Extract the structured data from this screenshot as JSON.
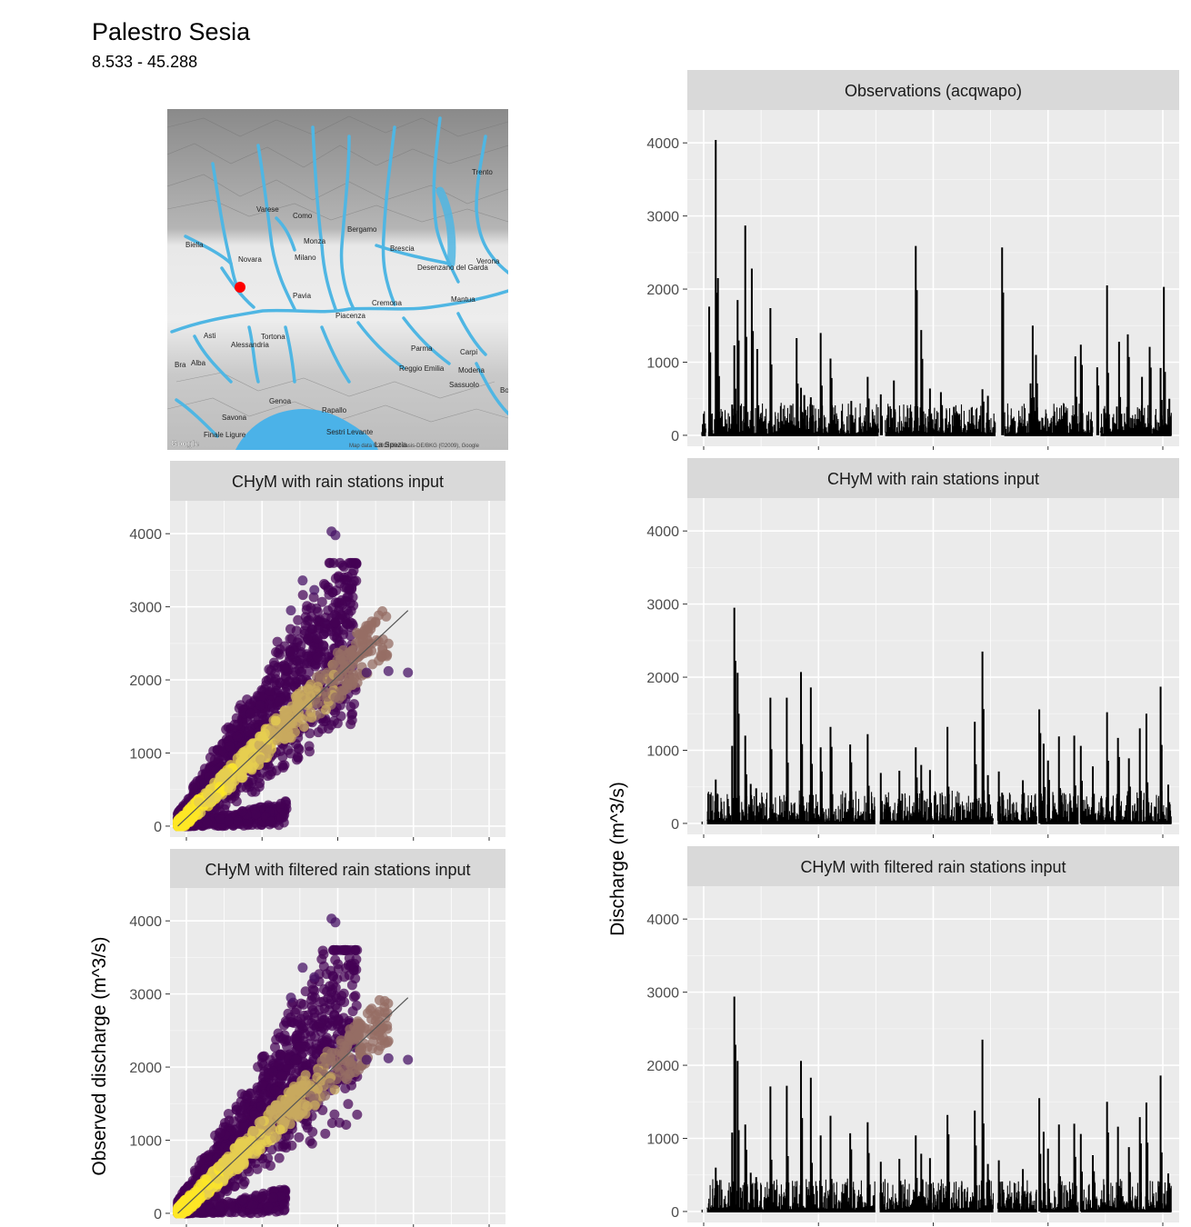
{
  "header": {
    "station_name": "Palestro Sesia",
    "coordinates": "8.533 - 45.288"
  },
  "map": {
    "marker_color": "#ff0000",
    "river_color": "#4fb6e3",
    "sea_color": "#4bb2e8",
    "labels": [
      "Varese",
      "Como",
      "Biella",
      "Monza",
      "Bergamo",
      "Brescia",
      "Novara",
      "Milano",
      "Desenzano del Garda",
      "Verona",
      "Pavia",
      "Cremona",
      "Mantua",
      "Piacenza",
      "Asti",
      "Alessandria",
      "Tortona",
      "Parma",
      "Carpi",
      "Reggio Emilia",
      "Modena",
      "Sassuolo",
      "Genoa",
      "Rapallo",
      "Savona",
      "Sestri Levante",
      "Trento",
      "Bra",
      "Alba",
      "Finale Ligure",
      "La Spezia",
      "Bo"
    ],
    "google_logo": "Google",
    "attribution": "Map data ©2018 GeoBasis-DE/BKG (©2009), Google"
  },
  "chart_data": [
    {
      "type": "scatter",
      "id": "scatter-rain",
      "title": "CHyM with rain stations input",
      "xlabel": "",
      "ylabel": "",
      "ylim": [
        -150,
        4450
      ],
      "y_ticks": [
        0,
        1000,
        2000,
        3000,
        4000
      ],
      "xlim": [
        -100,
        4200
      ],
      "identity_line": [
        [
          0,
          0
        ],
        [
          2950,
          2950
        ]
      ],
      "notable_points": [
        [
          1970,
          4030
        ],
        [
          2020,
          3980
        ],
        [
          1600,
          3360
        ],
        [
          1750,
          3230
        ],
        [
          1450,
          2950
        ],
        [
          2420,
          2100
        ],
        [
          2700,
          2120
        ],
        [
          2950,
          2100
        ]
      ]
    },
    {
      "type": "scatter",
      "id": "scatter-filtered",
      "title": "CHyM with filtered rain stations input",
      "xlabel": "",
      "ylabel": "Observed discharge (m^3/s)",
      "ylim": [
        -150,
        4450
      ],
      "y_ticks": [
        0,
        1000,
        2000,
        3000,
        4000
      ],
      "xlim": [
        -100,
        4200
      ],
      "identity_line": [
        [
          0,
          0
        ],
        [
          2950,
          2950
        ]
      ],
      "notable_points": [
        [
          1970,
          4030
        ],
        [
          2020,
          3980
        ],
        [
          1600,
          3360
        ],
        [
          1750,
          3230
        ],
        [
          1450,
          2950
        ],
        [
          2420,
          2100
        ],
        [
          2700,
          2120
        ],
        [
          2950,
          2100
        ]
      ]
    },
    {
      "type": "bar",
      "id": "ts-observations",
      "title": "Observations (acqwapo)",
      "ylim": [
        -150,
        4450
      ],
      "y_ticks": [
        0,
        1000,
        2000,
        3000,
        4000
      ],
      "x": [
        0.5,
        1.0,
        1.6,
        1.8,
        3.1,
        3.3,
        3.6,
        4.3,
        4.9,
        5.4,
        6.6,
        9.0,
        9.4,
        9.7,
        10.3,
        11.2,
        12.1,
        14.0,
        15.5,
        16.7,
        17.9,
        19.9,
        20.4,
        21.2,
        22.2,
        23.4,
        26.0,
        26.5,
        27.8,
        30.4,
        30.6,
        30.9,
        34.5,
        35.0,
        36.5,
        37.4,
        38.5,
        39.3,
        40.6,
        41.3,
        42.3,
        42.6,
        43.1
      ],
      "values": [
        50,
        1760,
        4040,
        2150,
        420,
        1230,
        1850,
        2870,
        2280,
        1180,
        1740,
        1330,
        650,
        550,
        520,
        1400,
        1050,
        470,
        800,
        560,
        750,
        2590,
        1440,
        640,
        590,
        390,
        630,
        540,
        2570,
        710,
        1500,
        1100,
        1080,
        1240,
        930,
        2050,
        1280,
        1380,
        800,
        1210,
        920,
        2030,
        500
      ],
      "gaps": [
        [
          0.7,
          0.9
        ],
        [
          16.5,
          17.1
        ],
        [
          27.2,
          28.0
        ],
        [
          36.1,
          36.8
        ]
      ]
    },
    {
      "type": "bar",
      "id": "ts-rain",
      "title": "CHyM with rain stations input",
      "ylim": [
        -150,
        4450
      ],
      "y_ticks": [
        0,
        1000,
        2000,
        3000,
        4000
      ],
      "x": [
        1.6,
        3.1,
        3.3,
        3.6,
        4.3,
        4.8,
        5.3,
        6.6,
        8.1,
        9.4,
        10.3,
        11.2,
        12.1,
        13.9,
        15.5,
        16.7,
        18.4,
        19.9,
        20.4,
        21.2,
        22.8,
        25.3,
        26.0,
        26.5,
        27.5,
        27.8,
        29.7,
        31.2,
        31.6,
        32.0,
        33.0,
        34.4,
        35.0,
        36.1,
        37.4,
        38.4,
        39.4,
        40.4,
        41.0,
        42.3,
        43.0
      ],
      "values": [
        600,
        1060,
        2950,
        2060,
        1200,
        540,
        480,
        1720,
        1720,
        2070,
        1860,
        1040,
        1320,
        1080,
        1220,
        690,
        720,
        1040,
        800,
        730,
        1320,
        1390,
        2350,
        660,
        710,
        420,
        590,
        1560,
        1090,
        860,
        1190,
        1200,
        1060,
        780,
        1520,
        1170,
        890,
        1300,
        1500,
        1870,
        530
      ],
      "gaps": [
        [
          0.4,
          0.8
        ],
        [
          16.2,
          16.6
        ],
        [
          27.0,
          27.4
        ],
        [
          31.0,
          31.3
        ],
        [
          34.8,
          35.0
        ]
      ]
    },
    {
      "type": "bar",
      "id": "ts-filtered",
      "title": "CHyM with filtered rain stations input",
      "ylabel": "Discharge (m^3/s)",
      "ylim": [
        -150,
        4450
      ],
      "y_ticks": [
        0,
        1000,
        2000,
        3000,
        4000
      ],
      "x": [
        1.6,
        3.1,
        3.3,
        3.6,
        4.3,
        4.8,
        5.3,
        6.6,
        8.1,
        9.4,
        10.3,
        11.2,
        12.1,
        13.9,
        15.5,
        16.7,
        18.4,
        19.9,
        20.4,
        21.2,
        22.8,
        25.3,
        26.0,
        26.5,
        27.5,
        27.8,
        29.7,
        31.2,
        31.6,
        32.0,
        33.0,
        34.4,
        35.0,
        36.1,
        37.4,
        38.4,
        39.4,
        40.4,
        41.0,
        42.3,
        43.0
      ],
      "values": [
        600,
        1080,
        2940,
        2060,
        1190,
        530,
        470,
        1710,
        1720,
        2060,
        1830,
        1040,
        1310,
        1070,
        1220,
        680,
        720,
        1040,
        790,
        730,
        1320,
        1380,
        2350,
        650,
        700,
        410,
        580,
        1550,
        1090,
        860,
        1190,
        1200,
        1060,
        770,
        1500,
        1160,
        880,
        1290,
        1490,
        1860,
        520
      ],
      "gaps": [
        [
          0.4,
          0.8
        ],
        [
          16.2,
          16.6
        ],
        [
          27.0,
          27.4
        ],
        [
          31.0,
          31.3
        ],
        [
          34.8,
          35.0
        ]
      ]
    }
  ]
}
